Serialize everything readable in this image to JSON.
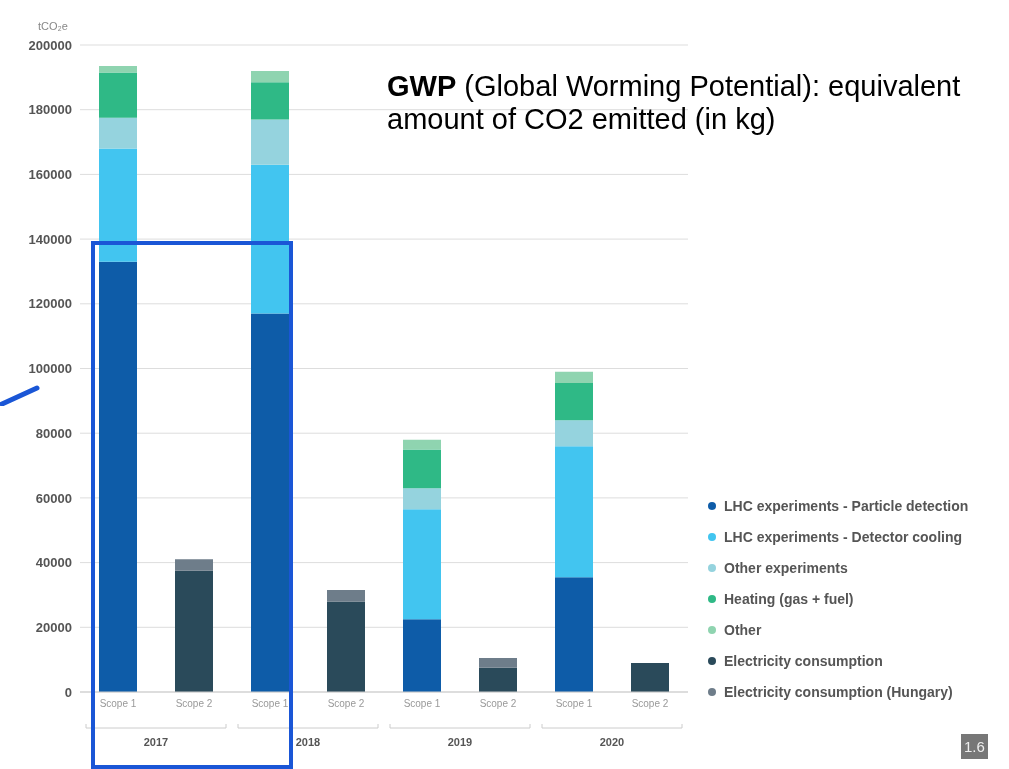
{
  "chart_data": {
    "type": "bar",
    "stacked": true,
    "ylabel": "tCO₂e",
    "categories": [
      "Scope 1",
      "Scope 2",
      "Scope 1",
      "Scope 2",
      "Scope 1",
      "Scope 2",
      "Scope 1",
      "Scope 2"
    ],
    "series": [
      {
        "name": "LHC experiments - Particle detection",
        "color": "#0e5ca8",
        "values": [
          133000,
          null,
          117000,
          null,
          22500,
          null,
          35500,
          null
        ]
      },
      {
        "name": "LHC experiments - Detector cooling",
        "color": "#42c5f0",
        "values": [
          35000,
          null,
          46000,
          null,
          34000,
          null,
          40500,
          null
        ]
      },
      {
        "name": "Other experiments",
        "color": "#95d3de",
        "values": [
          9500,
          null,
          14000,
          null,
          6500,
          null,
          8000,
          null
        ]
      },
      {
        "name": "Heating (gas + fuel)",
        "color": "#2fb986",
        "values": [
          14000,
          null,
          11500,
          null,
          12000,
          null,
          11500,
          null
        ]
      },
      {
        "name": "Other",
        "color": "#8fd4b0",
        "values": [
          2000,
          null,
          3500,
          null,
          3000,
          null,
          3500,
          null
        ]
      },
      {
        "name": "Electricity consumption",
        "color": "#2a4a5a",
        "values": [
          null,
          37500,
          null,
          28000,
          null,
          7500,
          null,
          9000
        ]
      },
      {
        "name": "Electricity consumption (Hungary)",
        "color": "#6e7d8a",
        "values": [
          null,
          3500,
          null,
          3500,
          null,
          3000,
          null,
          0
        ]
      }
    ],
    "ylim": [
      0,
      200000
    ],
    "yticks": [
      0,
      20000,
      40000,
      60000,
      80000,
      100000,
      120000,
      140000,
      160000,
      180000,
      200000
    ],
    "grid": "y",
    "legend": "right",
    "annotations": [
      "2017",
      "2018",
      "2019",
      "2020",
      "GWP (Global Worming Potential): equivalent amount of CO2 emitted (in kg)",
      "1.6"
    ]
  }
}
